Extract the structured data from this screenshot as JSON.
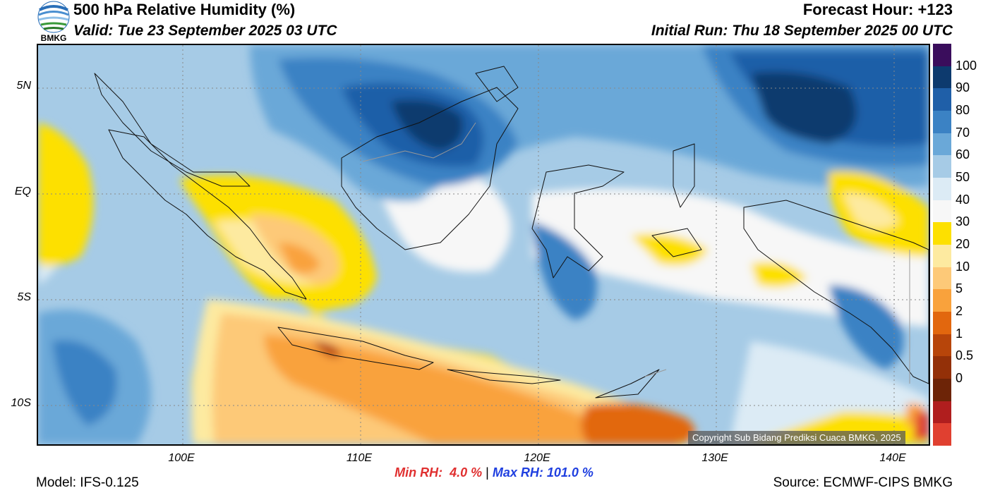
{
  "header": {
    "title": "500 hPa Relative Humidity (%)",
    "valid": "Valid: Tue 23 September 2025 03 UTC",
    "forecast_hour": "Forecast Hour: +123",
    "initial_run": "Initial Run: Thu 18 September 2025 00 UTC"
  },
  "logo": {
    "text": "BMKG"
  },
  "map": {
    "latitude_labels": [
      "5N",
      "EQ",
      "5S",
      "10S"
    ],
    "longitude_labels": [
      "100E",
      "110E",
      "120E",
      "130E",
      "140E"
    ],
    "copyright": "Copyright Sub Bidang Prediksi Cuaca BMKG, 2025"
  },
  "colorbar": {
    "labels": [
      "100",
      "90",
      "80",
      "70",
      "60",
      "50",
      "40",
      "30",
      "20",
      "10",
      "5",
      "2",
      "1",
      "0.5",
      "0"
    ],
    "colors": [
      "#3a0d5c",
      "#0d3a6e",
      "#1f5fa8",
      "#3b82c4",
      "#6aa8d8",
      "#a6cbe6",
      "#dcebf5",
      "#f7f7f7",
      "#fde000",
      "#fdeaa0",
      "#fdc978",
      "#f9a23c",
      "#e2670e",
      "#b7450a",
      "#933008",
      "#6d2407",
      "#b01e1e",
      "#e04030"
    ]
  },
  "stats": {
    "min_label": "Min RH:",
    "min_value": "4.0 %",
    "separator": "|",
    "max_label": "Max RH:",
    "max_value": "101.0 %",
    "min_color": "#e03030",
    "max_color": "#2040e0"
  },
  "footer": {
    "model": "Model: IFS-0.125",
    "source": "Source: ECMWF-CIPS BMKG"
  }
}
